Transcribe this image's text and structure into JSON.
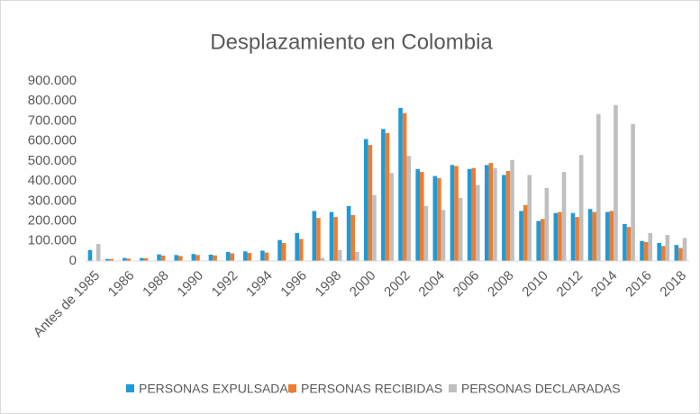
{
  "chart_data": {
    "type": "bar",
    "title": "Desplazamiento en Colombia",
    "categories": [
      "Antes de 1985",
      null,
      "1986",
      null,
      "1988",
      null,
      "1990",
      null,
      "1992",
      null,
      "1994",
      null,
      "1996",
      null,
      "1998",
      null,
      "2000",
      null,
      "2002",
      null,
      "2004",
      null,
      "2006",
      null,
      "2008",
      null,
      "2010",
      null,
      "2012",
      null,
      "2014",
      null,
      "2016",
      null,
      "2018"
    ],
    "series": [
      {
        "name": "PERSONAS EXPULSADAS",
        "color": "#1f9ad6",
        "values": [
          55000,
          10000,
          15000,
          15000,
          33000,
          30000,
          35000,
          32000,
          45000,
          48000,
          52000,
          105000,
          140000,
          250000,
          245000,
          275000,
          610000,
          660000,
          765000,
          460000,
          425000,
          480000,
          460000,
          480000,
          430000,
          250000,
          200000,
          240000,
          240000,
          260000,
          245000,
          185000,
          100000,
          90000,
          80000
        ]
      },
      {
        "name": "PERSONAS RECIBIDAS",
        "color": "#ed7d31",
        "values": [
          0,
          10000,
          12000,
          14000,
          27000,
          25000,
          30000,
          28000,
          38000,
          40000,
          42000,
          90000,
          110000,
          215000,
          220000,
          230000,
          580000,
          640000,
          740000,
          445000,
          415000,
          475000,
          465000,
          490000,
          450000,
          280000,
          210000,
          245000,
          220000,
          245000,
          250000,
          170000,
          95000,
          75000,
          65000
        ]
      },
      {
        "name": "PERSONAS DECLARADAS",
        "color": "#bfbfbf",
        "values": [
          85000,
          0,
          0,
          0,
          0,
          0,
          0,
          0,
          0,
          0,
          0,
          0,
          0,
          15000,
          55000,
          45000,
          330000,
          440000,
          525000,
          275000,
          255000,
          315000,
          380000,
          465000,
          505000,
          430000,
          365000,
          445000,
          530000,
          735000,
          780000,
          685000,
          140000,
          130000,
          115000
        ]
      }
    ],
    "ylim": [
      0,
      900000
    ],
    "yticks": [
      0,
      {
        "value": 100000,
        "label": "100.000"
      },
      {
        "value": 200000,
        "label": "200.000"
      },
      {
        "value": 300000,
        "label": "300.000"
      },
      {
        "value": 400000,
        "label": "400.000"
      },
      {
        "value": 500000,
        "label": "500.000"
      },
      {
        "value": 600000,
        "label": "600.000"
      },
      {
        "value": 700000,
        "label": "700.000"
      },
      {
        "value": 800000,
        "label": "800.000"
      },
      {
        "value": 900000,
        "label": "900.000"
      }
    ],
    "grid": false
  }
}
